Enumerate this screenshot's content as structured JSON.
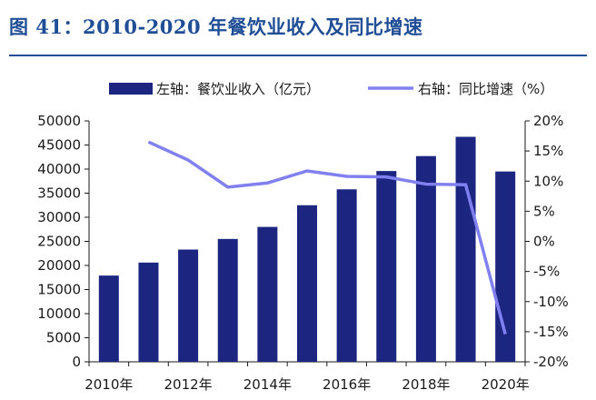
{
  "figure_title": "图 41：2010-2020 年餐饮业收入及同比增速",
  "colors": {
    "title": "#1f4e96",
    "bar": "#1c2580",
    "line": "#8080f0",
    "axis": "#1a1a1a"
  },
  "chart_data": {
    "type": "bar",
    "categories": [
      "2010年",
      "2011年",
      "2012年",
      "2013年",
      "2014年",
      "2015年",
      "2016年",
      "2017年",
      "2018年",
      "2019年",
      "2020年"
    ],
    "x_tick_labels": [
      "2010年",
      "",
      "2012年",
      "",
      "2014年",
      "",
      "2016年",
      "",
      "2018年",
      "",
      "2020年"
    ],
    "series": [
      {
        "name": "左轴：餐饮业收入（亿元）",
        "type": "bar",
        "axis": "left",
        "values": [
          17900,
          20600,
          23300,
          25500,
          28000,
          32500,
          35800,
          39600,
          42700,
          46700,
          39500
        ]
      },
      {
        "name": "右轴：同比增速（%）",
        "type": "line",
        "axis": "right",
        "values": [
          null,
          16.5,
          13.5,
          9.0,
          9.7,
          11.7,
          10.8,
          10.7,
          9.5,
          9.4,
          -15.4
        ]
      }
    ],
    "y_left": {
      "lim": [
        0,
        50000
      ],
      "ticks": [
        "0",
        "5000",
        "10000",
        "15000",
        "20000",
        "25000",
        "30000",
        "35000",
        "40000",
        "45000",
        "50000"
      ]
    },
    "y_right": {
      "lim": [
        -20,
        20
      ],
      "ticks": [
        "-20%",
        "-15%",
        "-10%",
        "-5%",
        "0%",
        "5%",
        "10%",
        "15%",
        "20%"
      ]
    },
    "legend": "top",
    "grid": false
  }
}
